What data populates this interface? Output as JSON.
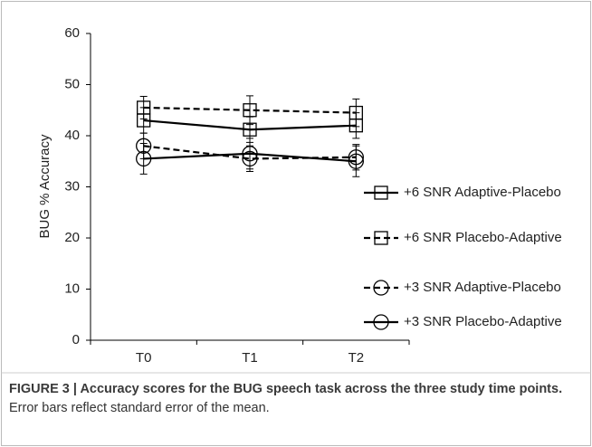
{
  "chart_data": {
    "type": "line",
    "ylabel": "BUG % Accuracy",
    "categories": [
      "T0",
      "T1",
      "T2"
    ],
    "ylim": [
      0,
      60
    ],
    "yticks": [
      0,
      10,
      20,
      30,
      40,
      50,
      60
    ],
    "legend": "right",
    "series": [
      {
        "name": "+6 SNR Adaptive-Placebo",
        "color": "#000000",
        "marker": "square",
        "dash": false,
        "values": [
          43,
          41.2,
          42
        ],
        "errors": [
          2.5,
          2.5,
          2.5
        ]
      },
      {
        "name": "+6 SNR Placebo-Adaptive",
        "color": "#000000",
        "marker": "square",
        "dash": true,
        "values": [
          45.5,
          45,
          44.5
        ],
        "errors": [
          2.2,
          2.8,
          2.7
        ]
      },
      {
        "name": "+3 SNR Adaptive-Placebo",
        "color": "#000000",
        "marker": "circle",
        "dash": true,
        "values": [
          38,
          35.5,
          35.8
        ],
        "errors": [
          2.5,
          2.5,
          2.5
        ]
      },
      {
        "name": "+3 SNR Placebo-Adaptive",
        "color": "#000000",
        "marker": "circle",
        "dash": false,
        "values": [
          35.5,
          36.5,
          35
        ],
        "errors": [
          3,
          3,
          3
        ]
      }
    ]
  },
  "caption": {
    "bold": "FIGURE 3 | Accuracy scores for the BUG speech task across the three study time points.",
    "text": "Error bars reflect standard error of the mean."
  }
}
